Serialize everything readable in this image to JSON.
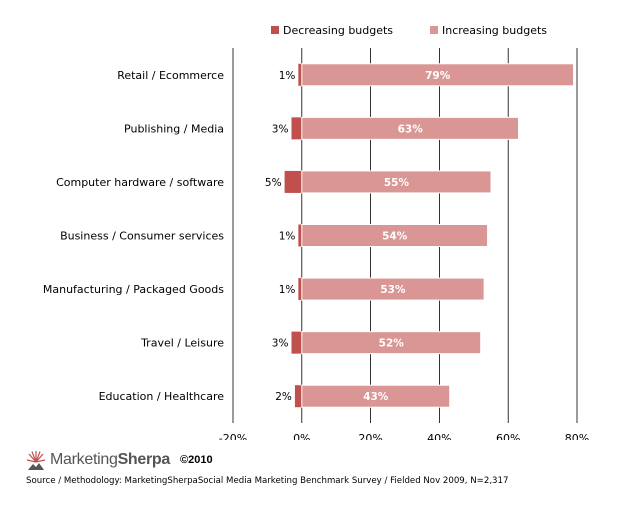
{
  "colors": {
    "decreasing": "#c0504d",
    "increasing": "#d99694",
    "bar_border": "#ffffff",
    "gridline": "#000000",
    "logo_accent": "#c0504d"
  },
  "chart_data": {
    "type": "bar",
    "orientation": "horizontal",
    "stacked": "diverging",
    "title": "",
    "xlabel": "",
    "ylabel": "",
    "xlim": [
      -20,
      80
    ],
    "x_ticks": [
      -20,
      0,
      20,
      40,
      60,
      80
    ],
    "x_tick_labels": [
      "-20%",
      "0%",
      "20%",
      "40%",
      "60%",
      "80%"
    ],
    "grid": "vertical major gridlines",
    "legend_position": "top",
    "categories": [
      "Retail / Ecommerce",
      "Publishing / Media",
      "Computer hardware / software",
      "Business / Consumer services",
      "Manufacturing / Packaged Goods",
      "Travel / Leisure",
      "Education / Healthcare"
    ],
    "series": [
      {
        "name": "Decreasing budgets",
        "values": [
          1,
          3,
          5,
          1,
          1,
          3,
          2
        ],
        "labels": [
          "1%",
          "3%",
          "5%",
          "1%",
          "1%",
          "3%",
          "2%"
        ]
      },
      {
        "name": "Increasing budgets",
        "values": [
          79,
          63,
          55,
          54,
          53,
          52,
          43
        ],
        "labels": [
          "79%",
          "63%",
          "55%",
          "54%",
          "53%",
          "52%",
          "43%"
        ]
      }
    ]
  },
  "footer": {
    "logo_marketing": "Marketing",
    "logo_sherpa": "Sherpa",
    "copyright": "©2010",
    "source": "Source / Methodology: MarketingSherpaSocial Media Marketing Benchmark Survey / Fielded Nov 2009, N=2,317"
  }
}
